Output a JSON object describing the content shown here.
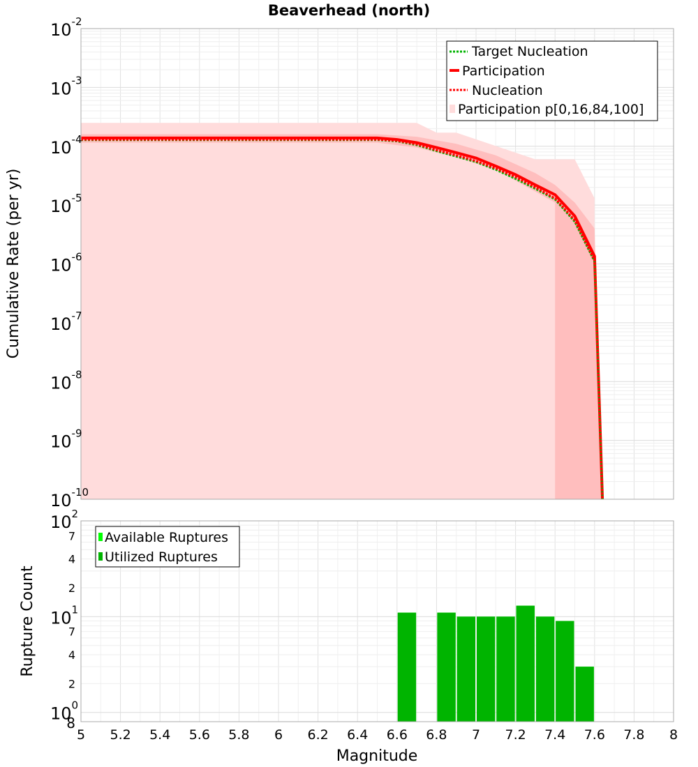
{
  "chart_data": [
    {
      "type": "line",
      "title": "Beaverhead (north)",
      "xlabel": "",
      "ylabel": "Cumulative Rate (per yr)",
      "xlim": [
        5,
        8
      ],
      "ylim": [
        1e-10,
        0.01
      ],
      "yscale": "log",
      "grid": true,
      "legend_position": "top-right",
      "legend": [
        "Target Nucleation",
        "Participation",
        "Nucleation",
        "Participation p[0,16,84,100]"
      ],
      "x": [
        5.0,
        5.1,
        5.2,
        5.3,
        5.4,
        5.5,
        5.6,
        5.7,
        5.8,
        5.9,
        6.0,
        6.1,
        6.2,
        6.3,
        6.4,
        6.5,
        6.6,
        6.7,
        6.8,
        6.9,
        7.0,
        7.1,
        7.2,
        7.3,
        7.4,
        7.5,
        7.6,
        7.64
      ],
      "series": [
        {
          "name": "Target Nucleation",
          "color": "#00b400",
          "style": "dotted",
          "values": [
            0.000128,
            0.000128,
            0.000128,
            0.000128,
            0.000128,
            0.000128,
            0.000128,
            0.000128,
            0.000128,
            0.000128,
            0.000128,
            0.000128,
            0.000128,
            0.000128,
            0.000128,
            0.000128,
            0.000122,
            0.000105,
            8.3e-05,
            6.7e-05,
            5.4e-05,
            4e-05,
            2.8e-05,
            1.9e-05,
            1.25e-05,
            5.2e-06,
            1.1e-06,
            1e-10
          ]
        },
        {
          "name": "Participation",
          "color": "#ff0000",
          "style": "solid",
          "values": [
            0.000138,
            0.000138,
            0.000138,
            0.000138,
            0.000138,
            0.000138,
            0.000138,
            0.000138,
            0.000138,
            0.000138,
            0.000138,
            0.000138,
            0.000138,
            0.000138,
            0.000138,
            0.000138,
            0.00013,
            0.000115,
            9.5e-05,
            7.8e-05,
            6.3e-05,
            4.6e-05,
            3.3e-05,
            2.2e-05,
            1.5e-05,
            6.5e-06,
            1.35e-06,
            1e-10
          ]
        },
        {
          "name": "Nucleation",
          "color": "#ff0000",
          "style": "dotted",
          "values": [
            0.00013,
            0.00013,
            0.00013,
            0.00013,
            0.00013,
            0.00013,
            0.00013,
            0.00013,
            0.00013,
            0.00013,
            0.00013,
            0.00013,
            0.00013,
            0.00013,
            0.00013,
            0.00013,
            0.000124,
            0.000108,
            8.6e-05,
            7e-05,
            5.6e-05,
            4.2e-05,
            3e-05,
            2e-05,
            1.3e-05,
            5.5e-06,
            1.15e-06,
            1e-10
          ]
        }
      ],
      "bands": [
        {
          "name": "Participation p[0,100]",
          "color": "#ffdcdc",
          "x": [
            5.0,
            6.7,
            6.8,
            6.9,
            7.3,
            7.5,
            7.6,
            7.6
          ],
          "upper": [
            0.00025,
            0.00025,
            0.00017,
            0.00017,
            6e-05,
            6e-05,
            1.3e-05,
            1e-10
          ],
          "lower": [
            1e-10,
            1e-10,
            1e-10,
            1e-10,
            1e-10,
            1e-10,
            1e-10,
            1e-10
          ]
        },
        {
          "name": "Participation p[16,84]",
          "color": "#ffbebe",
          "x": [
            5.0,
            6.5,
            6.7,
            6.9,
            7.1,
            7.3,
            7.4,
            7.4,
            7.5,
            7.6,
            7.64
          ],
          "upper": [
            0.00016,
            0.00016,
            0.000145,
            0.00011,
            7e-05,
            3.5e-05,
            2.2e-05,
            2.2e-05,
            1.1e-05,
            4e-06,
            1e-10
          ],
          "lower": [
            0.000115,
            0.000115,
            9.5e-05,
            6.5e-05,
            4e-05,
            1.7e-05,
            1.1e-05,
            1e-10,
            1e-10,
            1e-10,
            1e-10
          ]
        }
      ]
    },
    {
      "type": "bar",
      "title": "",
      "xlabel": "Magnitude",
      "ylabel": "Rupture Count",
      "xlim": [
        5,
        8
      ],
      "ylim": [
        0.8,
        100
      ],
      "yscale": "log",
      "grid": true,
      "legend_position": "top-left",
      "legend": [
        "Available Ruptures",
        "Utilized Ruptures"
      ],
      "bin_width": 0.1,
      "bin_centers": [
        6.65,
        6.75,
        6.85,
        6.95,
        7.05,
        7.15,
        7.25,
        7.35,
        7.45,
        7.55
      ],
      "series": [
        {
          "name": "Available Ruptures",
          "color": "#00ff00",
          "values": [
            11,
            0,
            11,
            10,
            10,
            10,
            13,
            10,
            9,
            3
          ]
        },
        {
          "name": "Utilized Ruptures",
          "color": "#00b400",
          "values": [
            11,
            0,
            11,
            10,
            10,
            10,
            13,
            10,
            9,
            3
          ]
        }
      ],
      "x_ticks": [
        "5",
        "5.2",
        "5.4",
        "5.6",
        "5.8",
        "6",
        "6.2",
        "6.4",
        "6.6",
        "6.8",
        "7",
        "7.2",
        "7.4",
        "7.6",
        "7.8",
        "8"
      ],
      "y_minor_ticks": [
        "2",
        "4",
        "7",
        "2",
        "4",
        "7"
      ]
    }
  ]
}
